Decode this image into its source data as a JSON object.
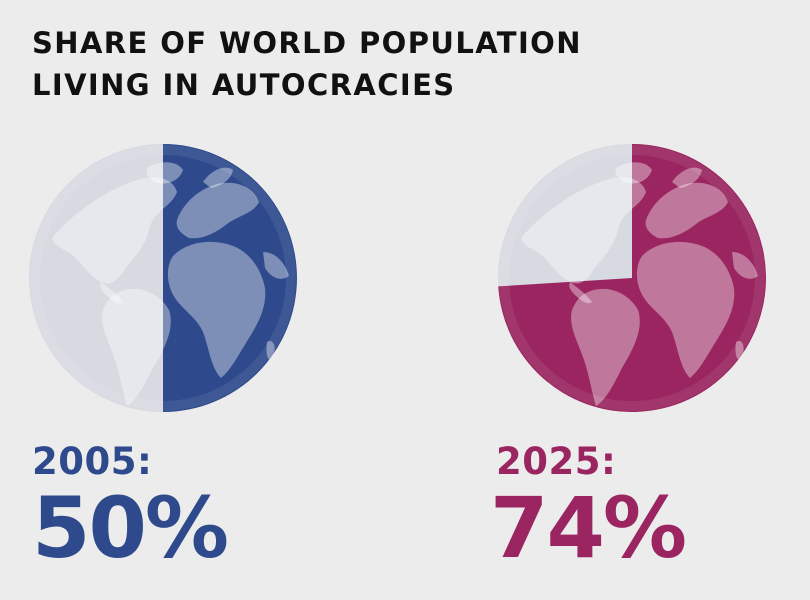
{
  "title": {
    "line1": "SHARE OF WORLD POPULATION",
    "line2": "LIVING IN AUTOCRACIES"
  },
  "colors": {
    "background": "#ececec",
    "globe_light": "#d8dae2",
    "series_2005": "#2e4a8c",
    "series_2025": "#9a2560"
  },
  "chart_data": {
    "type": "pie",
    "items": [
      {
        "year_label": "2005:",
        "value_label": "50%",
        "share": 50,
        "color": "#2e4a8c",
        "globe_icon": "globe-americas-africa-europe"
      },
      {
        "year_label": "2025:",
        "value_label": "74%",
        "share": 74,
        "color": "#9a2560",
        "globe_icon": "globe-americas-africa-europe"
      }
    ]
  }
}
